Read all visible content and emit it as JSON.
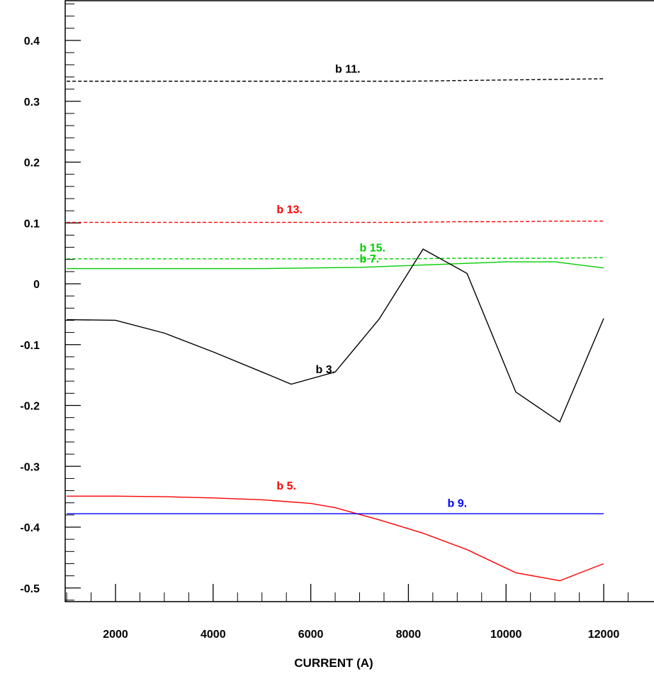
{
  "chart_data": {
    "type": "line",
    "xlabel": "CURRENT (A)",
    "ylabel": "",
    "xlim": [
      900,
      13000
    ],
    "ylim": [
      -0.51,
      0.46
    ],
    "xticks": [
      2000,
      4000,
      6000,
      8000,
      10000,
      12000
    ],
    "xtick_labels": [
      "2000",
      "4000",
      "6000",
      "8000",
      "10000",
      "12000"
    ],
    "yticks": [
      0.4,
      0.3,
      0.2,
      0.1,
      0,
      -0.1,
      -0.2,
      -0.3,
      -0.4,
      -0.5
    ],
    "ytick_labels": [
      "0.4",
      "0.3",
      "0.2",
      "0.1",
      "0",
      "-0.1",
      "-0.2",
      "-0.3",
      "-0.4",
      "-0.5"
    ],
    "grid": false,
    "series": [
      {
        "name": "b 11.",
        "color": "#000000",
        "style": "dashed",
        "x": [
          1000,
          2000,
          3000,
          4000,
          5000,
          6000,
          7000,
          8000,
          9000,
          10000,
          11000,
          12000
        ],
        "y": [
          0.333,
          0.333,
          0.333,
          0.333,
          0.333,
          0.333,
          0.333,
          0.333,
          0.334,
          0.335,
          0.336,
          0.337
        ],
        "label_at": [
          6500,
          0.347
        ]
      },
      {
        "name": "b 13.",
        "color": "#ff0000",
        "style": "dashed",
        "x": [
          1000,
          2000,
          3000,
          4000,
          5000,
          6000,
          7000,
          8000,
          9000,
          10000,
          11000,
          12000
        ],
        "y": [
          0.101,
          0.101,
          0.101,
          0.101,
          0.101,
          0.101,
          0.101,
          0.101,
          0.102,
          0.102,
          0.103,
          0.103
        ],
        "label_at": [
          5300,
          0.116
        ]
      },
      {
        "name": "b 15.",
        "color": "#00cc00",
        "style": "dashed",
        "x": [
          1000,
          2000,
          3000,
          4000,
          5000,
          6000,
          7000,
          8000,
          9000,
          10000,
          11000,
          12000
        ],
        "y": [
          0.041,
          0.041,
          0.041,
          0.041,
          0.041,
          0.041,
          0.041,
          0.041,
          0.042,
          0.042,
          0.042,
          0.043
        ],
        "label_at": [
          7000,
          0.053
        ]
      },
      {
        "name": "b 7.",
        "color": "#00cc00",
        "style": "solid",
        "x": [
          1000,
          2000,
          3000,
          4000,
          5000,
          6000,
          7000,
          8000,
          9000,
          10000,
          11000,
          12000
        ],
        "y": [
          0.025,
          0.025,
          0.025,
          0.025,
          0.025,
          0.026,
          0.027,
          0.03,
          0.033,
          0.036,
          0.036,
          0.026
        ],
        "label_at": [
          7000,
          0.035
        ]
      },
      {
        "name": "b 3.",
        "color": "#000000",
        "style": "solid",
        "x": [
          1000,
          2000,
          3000,
          4000,
          5000,
          5600,
          6500,
          7400,
          8300,
          9200,
          10200,
          11100,
          12000
        ],
        "y": [
          -0.059,
          -0.06,
          -0.081,
          -0.112,
          -0.145,
          -0.165,
          -0.145,
          -0.058,
          0.057,
          0.017,
          -0.178,
          -0.227,
          -0.057
        ],
        "label_at": [
          6100,
          -0.147
        ]
      },
      {
        "name": "b 5.",
        "color": "#ff0000",
        "style": "solid",
        "x": [
          1000,
          2000,
          3000,
          4000,
          5000,
          6000,
          6500,
          7400,
          8300,
          9200,
          10200,
          11100,
          12000
        ],
        "y": [
          -0.349,
          -0.349,
          -0.35,
          -0.352,
          -0.355,
          -0.361,
          -0.368,
          -0.388,
          -0.41,
          -0.437,
          -0.475,
          -0.488,
          -0.46
        ],
        "label_at": [
          5300,
          -0.338
        ]
      },
      {
        "name": "b 9.",
        "color": "#0000ff",
        "style": "solid",
        "x": [
          1000,
          2000,
          3000,
          4000,
          5000,
          6000,
          7000,
          8000,
          9000,
          10000,
          11000,
          12000
        ],
        "y": [
          -0.378,
          -0.378,
          -0.378,
          -0.378,
          -0.378,
          -0.378,
          -0.378,
          -0.378,
          -0.378,
          -0.378,
          -0.378,
          -0.378
        ],
        "label_at": [
          8800,
          -0.367
        ]
      }
    ]
  }
}
